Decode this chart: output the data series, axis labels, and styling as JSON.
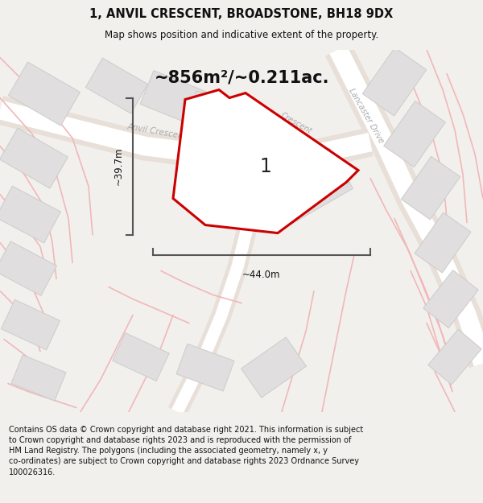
{
  "title_line1": "1, ANVIL CRESCENT, BROADSTONE, BH18 9DX",
  "title_line2": "Map shows position and indicative extent of the property.",
  "area_text": "~856m²/~0.211ac.",
  "plot_number": "1",
  "dim_width": "~44.0m",
  "dim_height": "~39.7m",
  "footer_text": "Contains OS data © Crown copyright and database right 2021. This information is subject\nto Crown copyright and database rights 2023 and is reproduced with the permission of\nHM Land Registry. The polygons (including the associated geometry, namely x, y\nco-ordinates) are subject to Crown copyright and database rights 2023 Ordnance Survey\n100026316.",
  "bg_color": "#f2f0ed",
  "map_bg": "#f9f8f6",
  "road_outer_color": "#e8e0d8",
  "road_inner_color": "#ffffff",
  "plot_fill": "#f5f5f5",
  "plot_edge_color": "#cc0000",
  "building_fill": "#e0dede",
  "building_edge": "#cccccc",
  "faint_road_color": "#f0b8b8",
  "street_label_color": "#aaaaaa",
  "dim_color": "#555555",
  "title_color": "#111111",
  "footer_color": "#111111",
  "area_color": "#111111"
}
